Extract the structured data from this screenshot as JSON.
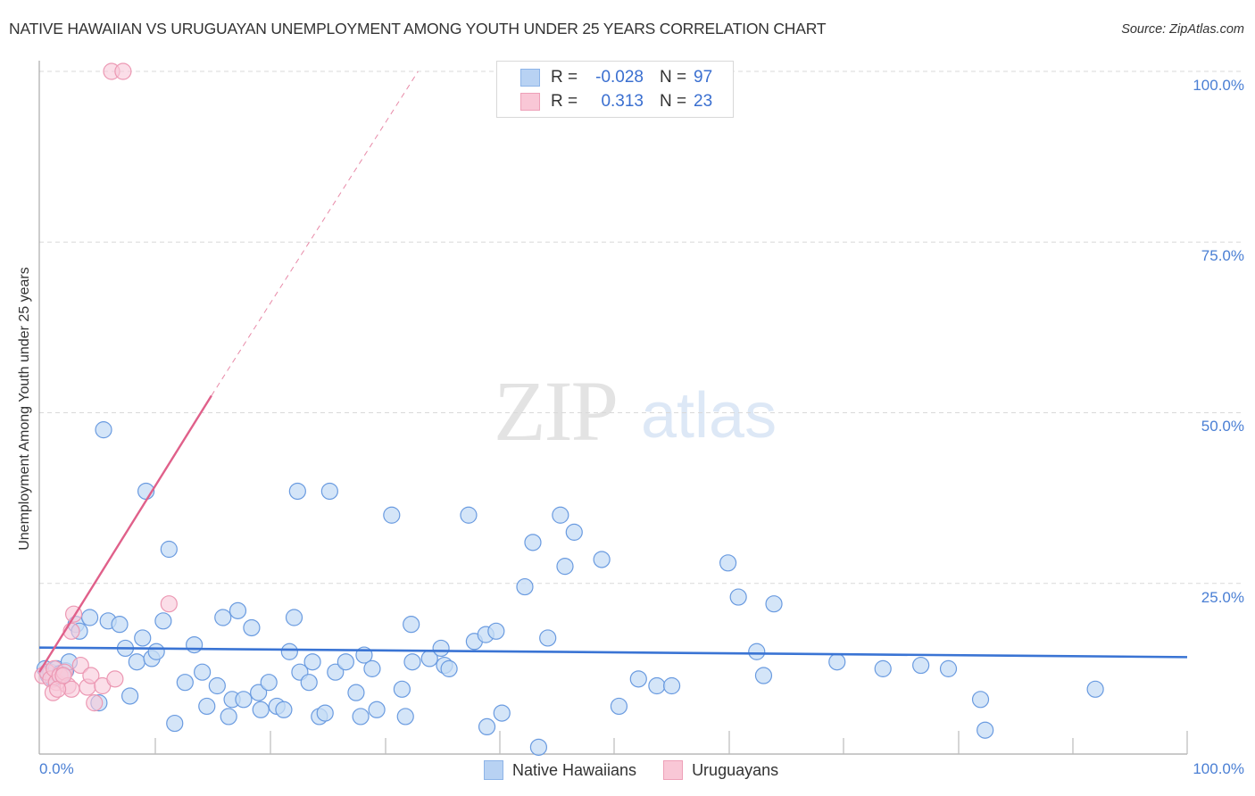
{
  "header": {
    "title": "NATIVE HAWAIIAN VS URUGUAYAN UNEMPLOYMENT AMONG YOUTH UNDER 25 YEARS CORRELATION CHART",
    "source": "Source: ZipAtlas.com"
  },
  "watermark": {
    "zip": "ZIP",
    "atlas": "atlas"
  },
  "legend": {
    "rows": [
      {
        "r_label": "R =",
        "r_value": "-0.028",
        "n_label": "N =",
        "n_value": "97",
        "color": "#aac8f0"
      },
      {
        "r_label": "R =",
        "r_value": "0.313",
        "n_label": "N =",
        "n_value": "23",
        "color": "#f7bcd0"
      }
    ]
  },
  "bottom_legend": {
    "series1": "Native Hawaiians",
    "series2": "Uruguayans"
  },
  "axes": {
    "ylabel": "Unemployment Among Youth under 25 years",
    "y_ticks": [
      "100.0%",
      "75.0%",
      "50.0%",
      "25.0%"
    ],
    "x_ticks": [
      "0.0%",
      "100.0%"
    ]
  },
  "colors": {
    "blue": "#3a74d4",
    "blue_fill": "#c6dcf5",
    "pink": "#e0608a",
    "pink_fill": "#f8c8d8",
    "tick_text": "#4a7fd4"
  },
  "chart_data": {
    "type": "scatter",
    "title": "NATIVE HAWAIIAN VS URUGUAYAN UNEMPLOYMENT AMONG YOUTH UNDER 25 YEARS CORRELATION CHART",
    "xlabel": "",
    "ylabel": "Unemployment Among Youth under 25 years",
    "xlim": [
      0,
      100
    ],
    "ylim": [
      0,
      100
    ],
    "grid": "horizontal dashed",
    "legend_position": "top-center and bottom",
    "series": [
      {
        "name": "Native Hawaiians",
        "R": -0.028,
        "N": 97,
        "trend": {
          "x": [
            0,
            100
          ],
          "y": [
            15.6,
            14.2
          ]
        },
        "points": [
          [
            0.5,
            12.5
          ],
          [
            0.8,
            11.5
          ],
          [
            1.0,
            12.0
          ],
          [
            1.2,
            11.0
          ],
          [
            1.5,
            12.5
          ],
          [
            1.8,
            11.8
          ],
          [
            2.0,
            11.5
          ],
          [
            2.3,
            12.2
          ],
          [
            2.6,
            13.5
          ],
          [
            3.2,
            19.0
          ],
          [
            3.5,
            18.0
          ],
          [
            4.4,
            20.0
          ],
          [
            5.6,
            47.5
          ],
          [
            6.0,
            19.5
          ],
          [
            5.2,
            7.5
          ],
          [
            7.0,
            19.0
          ],
          [
            7.5,
            15.5
          ],
          [
            7.9,
            8.5
          ],
          [
            8.5,
            13.5
          ],
          [
            9.0,
            17.0
          ],
          [
            9.3,
            38.5
          ],
          [
            9.8,
            14.0
          ],
          [
            10.2,
            15.0
          ],
          [
            10.8,
            19.5
          ],
          [
            11.3,
            30.0
          ],
          [
            11.8,
            4.5
          ],
          [
            12.7,
            10.5
          ],
          [
            13.5,
            16.0
          ],
          [
            14.2,
            12.0
          ],
          [
            14.6,
            7.0
          ],
          [
            15.5,
            10.0
          ],
          [
            16.0,
            20.0
          ],
          [
            16.5,
            5.5
          ],
          [
            16.8,
            8.0
          ],
          [
            17.3,
            21.0
          ],
          [
            17.8,
            8.0
          ],
          [
            18.5,
            18.5
          ],
          [
            19.1,
            9.0
          ],
          [
            19.3,
            6.5
          ],
          [
            20.0,
            10.5
          ],
          [
            20.7,
            7.0
          ],
          [
            21.3,
            6.5
          ],
          [
            21.8,
            15.0
          ],
          [
            22.2,
            20.0
          ],
          [
            22.5,
            38.5
          ],
          [
            22.7,
            12.0
          ],
          [
            23.5,
            10.5
          ],
          [
            23.8,
            13.5
          ],
          [
            24.4,
            5.5
          ],
          [
            24.9,
            6.0
          ],
          [
            25.3,
            38.5
          ],
          [
            25.8,
            12.0
          ],
          [
            26.7,
            13.5
          ],
          [
            27.6,
            9.0
          ],
          [
            28.0,
            5.5
          ],
          [
            28.3,
            14.5
          ],
          [
            29.0,
            12.5
          ],
          [
            29.4,
            6.5
          ],
          [
            30.7,
            35.0
          ],
          [
            31.6,
            9.5
          ],
          [
            31.9,
            5.5
          ],
          [
            32.4,
            19.0
          ],
          [
            32.5,
            13.5
          ],
          [
            34.0,
            14.0
          ],
          [
            35.0,
            15.5
          ],
          [
            35.3,
            13.0
          ],
          [
            35.7,
            12.5
          ],
          [
            37.4,
            35.0
          ],
          [
            37.9,
            16.5
          ],
          [
            38.9,
            17.5
          ],
          [
            39.0,
            4.0
          ],
          [
            39.8,
            18.0
          ],
          [
            40.3,
            6.0
          ],
          [
            42.3,
            24.5
          ],
          [
            43.0,
            31.0
          ],
          [
            43.5,
            1.0
          ],
          [
            44.3,
            17.0
          ],
          [
            45.4,
            35.0
          ],
          [
            45.8,
            27.5
          ],
          [
            46.6,
            32.5
          ],
          [
            49.0,
            28.5
          ],
          [
            50.5,
            7.0
          ],
          [
            52.2,
            11.0
          ],
          [
            53.8,
            10.0
          ],
          [
            55.1,
            10.0
          ],
          [
            60.0,
            28.0
          ],
          [
            60.9,
            23.0
          ],
          [
            62.5,
            15.0
          ],
          [
            63.1,
            11.5
          ],
          [
            64.0,
            22.0
          ],
          [
            69.5,
            13.5
          ],
          [
            73.5,
            12.5
          ],
          [
            76.8,
            13.0
          ],
          [
            79.2,
            12.5
          ],
          [
            82.0,
            8.0
          ],
          [
            82.4,
            3.5
          ],
          [
            92.0,
            9.5
          ]
        ]
      },
      {
        "name": "Uruguayans",
        "R": 0.313,
        "N": 23,
        "trend": {
          "x": [
            0,
            15
          ],
          "y": [
            12.0,
            52.5
          ],
          "dashed_extension_to": [
            33,
            100
          ]
        },
        "points": [
          [
            0.3,
            11.5
          ],
          [
            0.7,
            12.0
          ],
          [
            1.0,
            11.0
          ],
          [
            1.3,
            12.5
          ],
          [
            1.5,
            10.5
          ],
          [
            1.8,
            11.5
          ],
          [
            2.2,
            12.0
          ],
          [
            2.5,
            10.0
          ],
          [
            2.8,
            9.5
          ],
          [
            1.2,
            9.0
          ],
          [
            1.6,
            9.5
          ],
          [
            2.1,
            11.5
          ],
          [
            3.0,
            20.5
          ],
          [
            2.8,
            18.0
          ],
          [
            3.6,
            13.0
          ],
          [
            4.2,
            9.8
          ],
          [
            4.5,
            11.5
          ],
          [
            4.8,
            7.5
          ],
          [
            5.5,
            10.0
          ],
          [
            6.6,
            11.0
          ],
          [
            11.3,
            22.0
          ],
          [
            6.3,
            100.0
          ],
          [
            7.3,
            100.0
          ]
        ]
      }
    ]
  }
}
